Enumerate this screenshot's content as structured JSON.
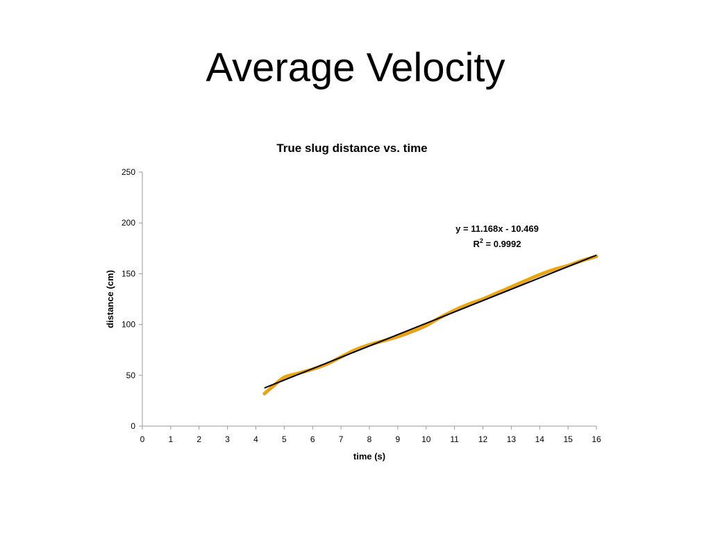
{
  "slide": {
    "title": "Average Velocity"
  },
  "chart_data": {
    "type": "line",
    "title": "True slug distance vs. time",
    "xlabel": "time (s)",
    "ylabel": "distance (cm)",
    "xlim": [
      0,
      16
    ],
    "ylim": [
      0,
      250
    ],
    "x_ticks": [
      "0",
      "1",
      "2",
      "3",
      "4",
      "5",
      "6",
      "7",
      "8",
      "9",
      "10",
      "11",
      "12",
      "13",
      "14",
      "15",
      "16"
    ],
    "y_ticks": [
      "0",
      "50",
      "100",
      "150",
      "200",
      "250"
    ],
    "grid": false,
    "legend": "none",
    "series": [
      {
        "color": "#E8A317",
        "x": [
          4.3,
          4.6,
          5.0,
          5.5,
          6.0,
          6.5,
          7.0,
          7.5,
          8.0,
          8.5,
          9.0,
          9.5,
          10.0,
          10.5,
          11.0,
          11.5,
          12.0,
          12.5,
          13.0,
          13.5,
          14.0,
          14.5,
          15.0,
          15.5,
          16.0
        ],
        "y": [
          32,
          39,
          48,
          52,
          56,
          61,
          68,
          75,
          80,
          84,
          88,
          93,
          99,
          107,
          114,
          120,
          125,
          131,
          137,
          143,
          149,
          154,
          158,
          163,
          167
        ]
      }
    ],
    "trendline": {
      "type": "linear",
      "slope": 11.168,
      "intercept": -10.469,
      "x_range": [
        4.3,
        16.0
      ],
      "color": "#000000",
      "equation_label": "y = 11.168x - 10.469",
      "r2_prefix": "R",
      "r2_sup": "2",
      "r2_value": " = 0.9992"
    }
  }
}
